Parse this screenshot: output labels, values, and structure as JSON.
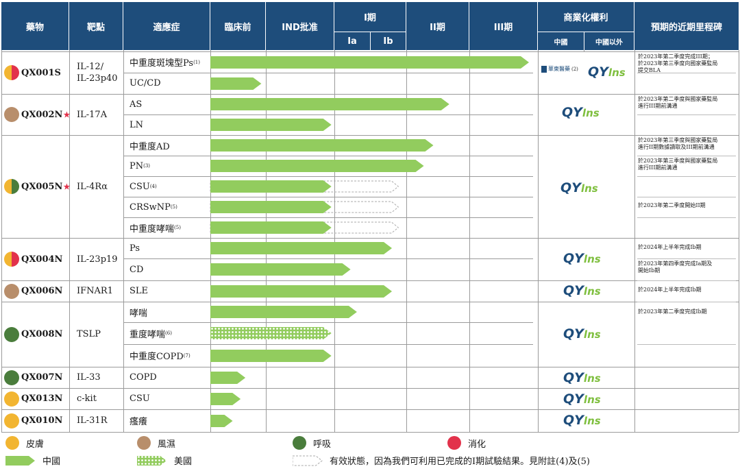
{
  "headers": {
    "drug": "藥物",
    "target": "靶點",
    "indication": "適應症",
    "preclinical": "臨床前",
    "ind": "IND批准",
    "phase1": "I期",
    "phase1a": "Ia",
    "phase1b": "Ib",
    "phase2": "II期",
    "phase3": "III期",
    "commercial": "商業化權利",
    "china": "中國",
    "outside": "中國以外",
    "milestone": "預期的近期里程碑"
  },
  "drugs": [
    {
      "name": "QX001S",
      "star": "",
      "target": "IL-12/\nIL-23p40",
      "colors": [
        "#f2b531",
        "#e2324b"
      ]
    },
    {
      "name": "QX002N",
      "star": "★",
      "target": "IL-17A",
      "colors": [
        "#b88e6b"
      ]
    },
    {
      "name": "QX005N",
      "star": "★",
      "target": "IL-4Rα",
      "colors": [
        "#f2b531",
        "#4a7d3c"
      ]
    },
    {
      "name": "QX004N",
      "star": "",
      "target": "IL-23p19",
      "colors": [
        "#f2b531",
        "#e2324b"
      ]
    },
    {
      "name": "QX006N",
      "star": "",
      "target": "IFNAR1",
      "colors": [
        "#b88e6b"
      ]
    },
    {
      "name": "QX008N",
      "star": "",
      "target": "TSLP",
      "colors": [
        "#4a7d3c"
      ]
    },
    {
      "name": "QX007N",
      "star": "",
      "target": "IL-33",
      "colors": [
        "#4a7d3c"
      ]
    },
    {
      "name": "QX013N",
      "star": "",
      "target": "c-kit",
      "colors": [
        "#f2b531"
      ]
    },
    {
      "name": "QX010N",
      "star": "",
      "target": "IL-31R",
      "colors": [
        "#f2b531"
      ]
    }
  ],
  "indications": [
    {
      "label": "中重度斑塊型Ps",
      "note": "(1)",
      "progress": 1.0,
      "style": "solid"
    },
    {
      "label": "UC/CD",
      "note": "",
      "progress": 0.16,
      "style": "solid"
    },
    {
      "label": "AS",
      "note": "",
      "progress": 0.75,
      "style": "solid"
    },
    {
      "label": "LN",
      "note": "",
      "progress": 0.38,
      "style": "solid"
    },
    {
      "label": "中重度AD",
      "note": "",
      "progress": 0.7,
      "style": "solid"
    },
    {
      "label": "PN",
      "note": "(3)",
      "progress": 0.67,
      "style": "solid"
    },
    {
      "label": "CSU",
      "note": "(4)",
      "progress": 0.38,
      "style": "solid",
      "dashed_to": 0.59
    },
    {
      "label": "CRSwNP",
      "note": "(5)",
      "progress": 0.38,
      "style": "solid",
      "dashed_to": 0.59
    },
    {
      "label": "中重度哮喘",
      "note": "(5)",
      "progress": 0.38,
      "style": "solid",
      "dashed_to": 0.59
    },
    {
      "label": "Ps",
      "note": "",
      "progress": 0.57,
      "style": "solid"
    },
    {
      "label": "CD",
      "note": "",
      "progress": 0.44,
      "style": "solid"
    },
    {
      "label": "SLE",
      "note": "",
      "progress": 0.57,
      "style": "solid"
    },
    {
      "label": "哮喘",
      "note": "",
      "progress": 0.46,
      "style": "solid"
    },
    {
      "label": "重度哮喘",
      "note": "(6)",
      "progress": 0.38,
      "style": "hatched"
    },
    {
      "label": "中重度COPD",
      "note": "(7)",
      "progress": 0.38,
      "style": "solid"
    },
    {
      "label": "COPD",
      "note": "",
      "progress": 0.11,
      "style": "solid"
    },
    {
      "label": "CSU",
      "note": "",
      "progress": 0.095,
      "style": "solid"
    },
    {
      "label": "瘙癢",
      "note": "",
      "progress": 0.07,
      "style": "solid"
    }
  ],
  "partner": {
    "name": "華東醫藥",
    "note": "(2)"
  },
  "logo": {
    "main": "QY",
    "sub": "lns"
  },
  "milestones": [
    "於2023年第二季度完成III期；\n於2023年第三季度向國家藥監局\n提交BLA",
    "於2023年第二季度與國家藥監局\n進行III期前溝通",
    "於2023年第三季度與國家藥監局\n進行II期數據讀取及III期前溝通",
    "於2023年第三季度與國家藥監局\n進行III期前溝通",
    "於2023年第二季度開始II期",
    "於2024年上半年完成Ib期",
    "於2023年第四季度完成Ia期及\n開始Ib期",
    "於2024年上半年完成Ib期",
    "於2023年第二季度完成Ib期"
  ],
  "legend": {
    "skin": "皮膚",
    "rheum": "風濕",
    "resp": "呼吸",
    "digest": "消化",
    "china": "中國",
    "usa": "美國",
    "dashed": "有效狀態，因為我們可利用已完成的I期試驗結果。見附註(4)及(5)"
  },
  "colors": {
    "header": "#1e4d7b",
    "bar": "#92cc5e",
    "skin": "#f2b531",
    "rheum": "#b88e6b",
    "resp": "#4a7d3c",
    "digest": "#e2324b"
  }
}
